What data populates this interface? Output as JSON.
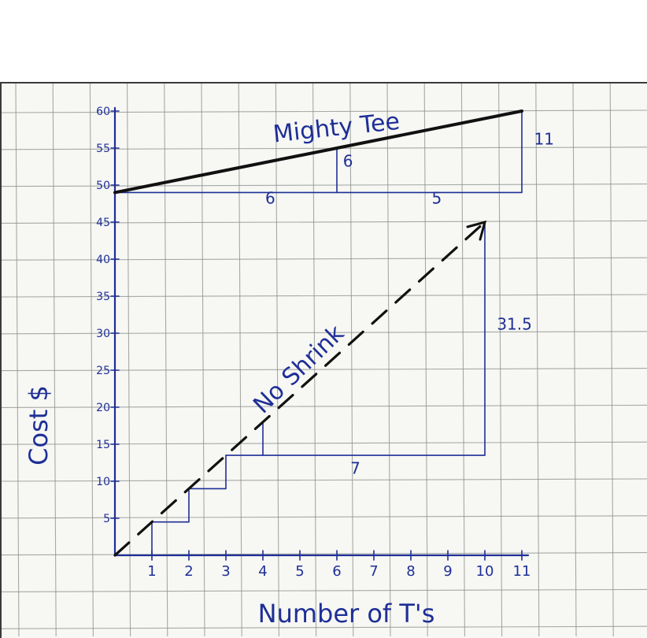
{
  "chart_data": {
    "type": "line",
    "xlabel": "Number of T's",
    "ylabel": "Cost $",
    "x_ticks": [
      1,
      2,
      3,
      4,
      5,
      6,
      7,
      8,
      9,
      10,
      11
    ],
    "y_ticks": [
      5,
      10,
      15,
      20,
      25,
      30,
      35,
      40,
      45,
      50,
      55,
      60
    ],
    "xlim": [
      0,
      11
    ],
    "ylim": [
      0,
      60
    ],
    "grid": true,
    "series": [
      {
        "name": "Mighty Tee",
        "style": "solid",
        "x": [
          0,
          11
        ],
        "y": [
          49,
          60
        ]
      },
      {
        "name": "No Shrink",
        "style": "dashed",
        "x": [
          0,
          10
        ],
        "y": [
          0,
          45
        ]
      }
    ],
    "steps": [
      {
        "x": [
          1,
          2
        ],
        "y": [
          4.5,
          9
        ]
      },
      {
        "x": [
          2,
          3
        ],
        "y": [
          9,
          13.5
        ]
      }
    ],
    "annotations": [
      {
        "text": "6",
        "x": 4.2,
        "y": 47.5
      },
      {
        "text": "5",
        "x": 8.7,
        "y": 47.5
      },
      {
        "text": "6",
        "x": 6.3,
        "y": 52.5
      },
      {
        "text": "11",
        "x": 11.6,
        "y": 55.5
      },
      {
        "text": "7",
        "x": 6.5,
        "y": 11
      },
      {
        "text": "31.5",
        "x": 10.8,
        "y": 30.5
      }
    ],
    "reference_triangles": [
      {
        "x0": 0,
        "x1": 11,
        "y0": 49,
        "y1": 60,
        "mid_x": 6
      },
      {
        "x0": 3,
        "x1": 10,
        "y0": 13.5,
        "y1": 45
      },
      {
        "x0": 3,
        "x1": 4,
        "y0": 13.5,
        "y1": 18
      }
    ],
    "colors": {
      "ink": "#1e2f96",
      "grid": "#8b8f8a",
      "mighty_tee_line": "#111111"
    }
  }
}
